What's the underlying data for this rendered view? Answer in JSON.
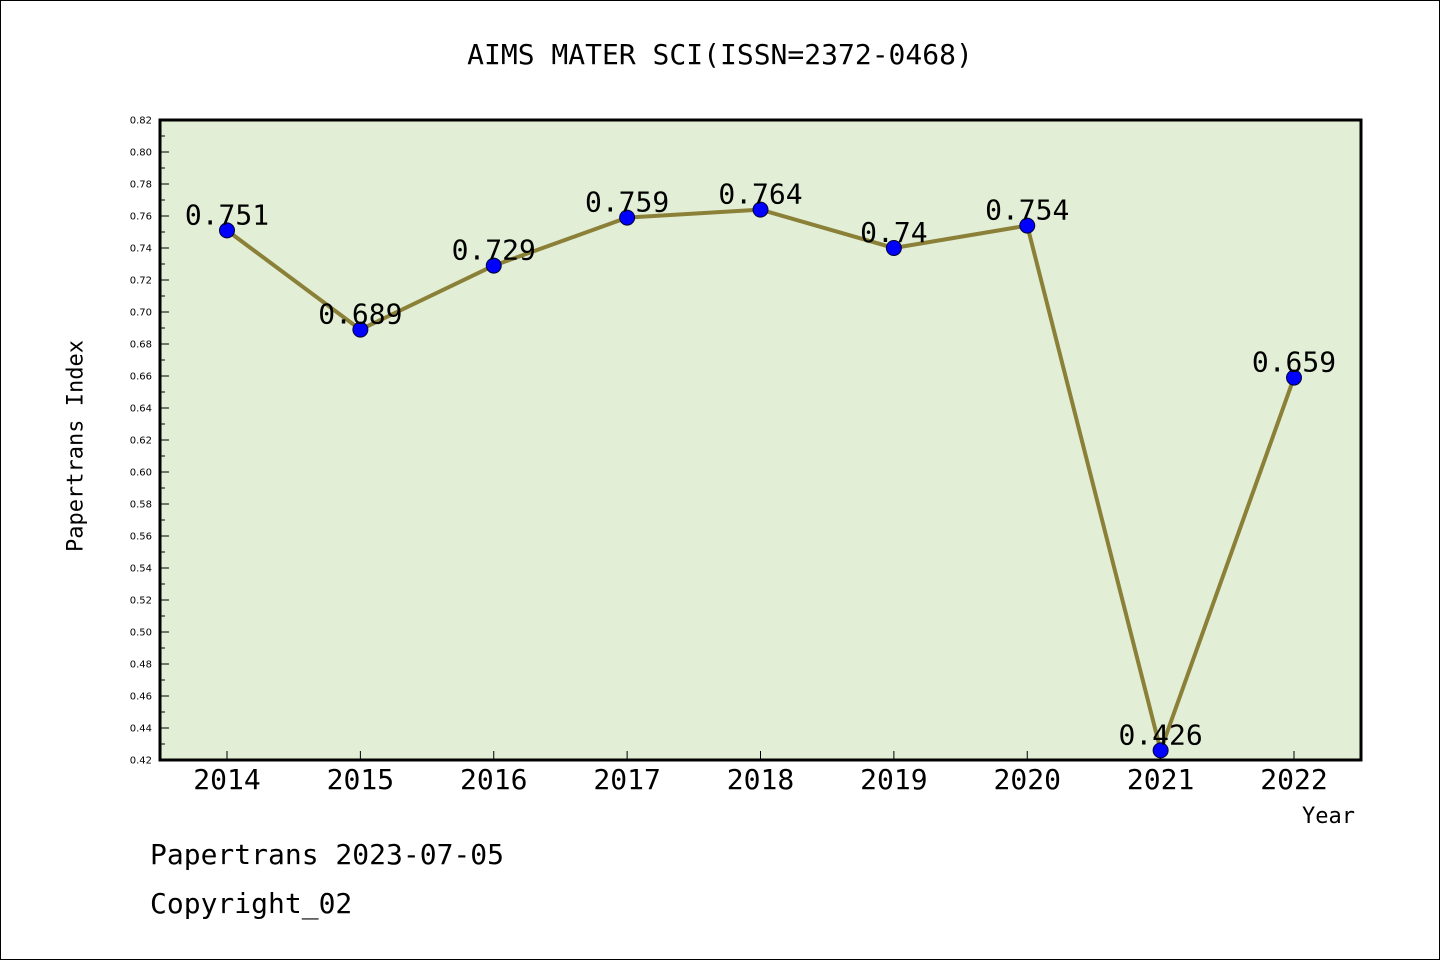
{
  "chart_data": {
    "type": "line",
    "title": "AIMS MATER SCI(ISSN=2372-0468)",
    "xlabel": "Year",
    "ylabel": "Papertrans Index",
    "categories": [
      "2014",
      "2015",
      "2016",
      "2017",
      "2018",
      "2019",
      "2020",
      "2021",
      "2022"
    ],
    "values": [
      0.751,
      0.689,
      0.729,
      0.759,
      0.764,
      0.74,
      0.754,
      0.426,
      0.659
    ],
    "data_labels": [
      "0.751",
      "0.689",
      "0.729",
      "0.759",
      "0.764",
      "0.74",
      "0.754",
      "0.426",
      "0.659"
    ],
    "ylim": [
      0.42,
      0.82
    ],
    "yticks": [
      "0.42",
      "0.44",
      "0.46",
      "0.48",
      "0.50",
      "0.52",
      "0.54",
      "0.56",
      "0.58",
      "0.60",
      "0.62",
      "0.64",
      "0.66",
      "0.68",
      "0.70",
      "0.72",
      "0.74",
      "0.76",
      "0.78",
      "0.80",
      "0.82"
    ],
    "grid": false,
    "colors": {
      "plot_background": "#e2efd6",
      "line": "#8b8038",
      "marker": "#0000ff"
    }
  },
  "footer": {
    "line1": "Papertrans 2023-07-05",
    "line2": "Copyright_02"
  }
}
